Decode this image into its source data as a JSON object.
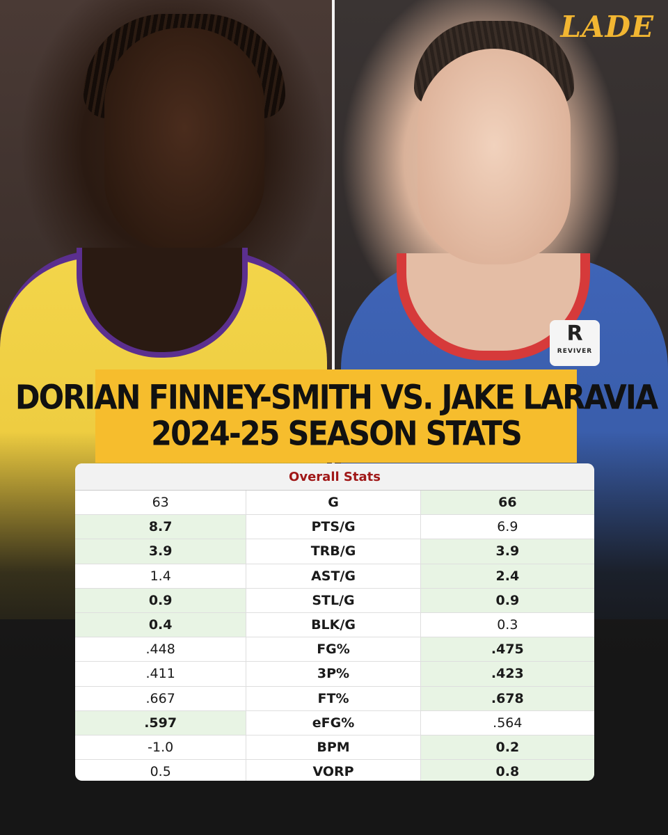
{
  "brand": {
    "logo_text": "LADE",
    "accent": "#f6bd2d",
    "header_red": "#a01818",
    "win_bg": "#e8f4e4"
  },
  "title": {
    "line1": "DORIAN FINNEY-SMITH VS. JAKE LARAVIA",
    "line2": "2024-25 SEASON STATS"
  },
  "jersey_patch": {
    "letter": "R",
    "sponsor": "REVIVER"
  },
  "table": {
    "section_title": "Overall Stats",
    "rows": [
      {
        "stat": "G",
        "left": "63",
        "right": "66",
        "winner": "right"
      },
      {
        "stat": "PTS/G",
        "left": "8.7",
        "right": "6.9",
        "winner": "left"
      },
      {
        "stat": "TRB/G",
        "left": "3.9",
        "right": "3.9",
        "winner": "both"
      },
      {
        "stat": "AST/G",
        "left": "1.4",
        "right": "2.4",
        "winner": "right"
      },
      {
        "stat": "STL/G",
        "left": "0.9",
        "right": "0.9",
        "winner": "both"
      },
      {
        "stat": "BLK/G",
        "left": "0.4",
        "right": "0.3",
        "winner": "left"
      },
      {
        "stat": "FG%",
        "left": ".448",
        "right": ".475",
        "winner": "right"
      },
      {
        "stat": "3P%",
        "left": ".411",
        "right": ".423",
        "winner": "right"
      },
      {
        "stat": "FT%",
        "left": ".667",
        "right": ".678",
        "winner": "right"
      },
      {
        "stat": "eFG%",
        "left": ".597",
        "right": ".564",
        "winner": "left"
      },
      {
        "stat": "BPM",
        "left": "-1.0",
        "right": "0.2",
        "winner": "right"
      },
      {
        "stat": "VORP",
        "left": "0.5",
        "right": "0.8",
        "winner": "right"
      }
    ]
  }
}
